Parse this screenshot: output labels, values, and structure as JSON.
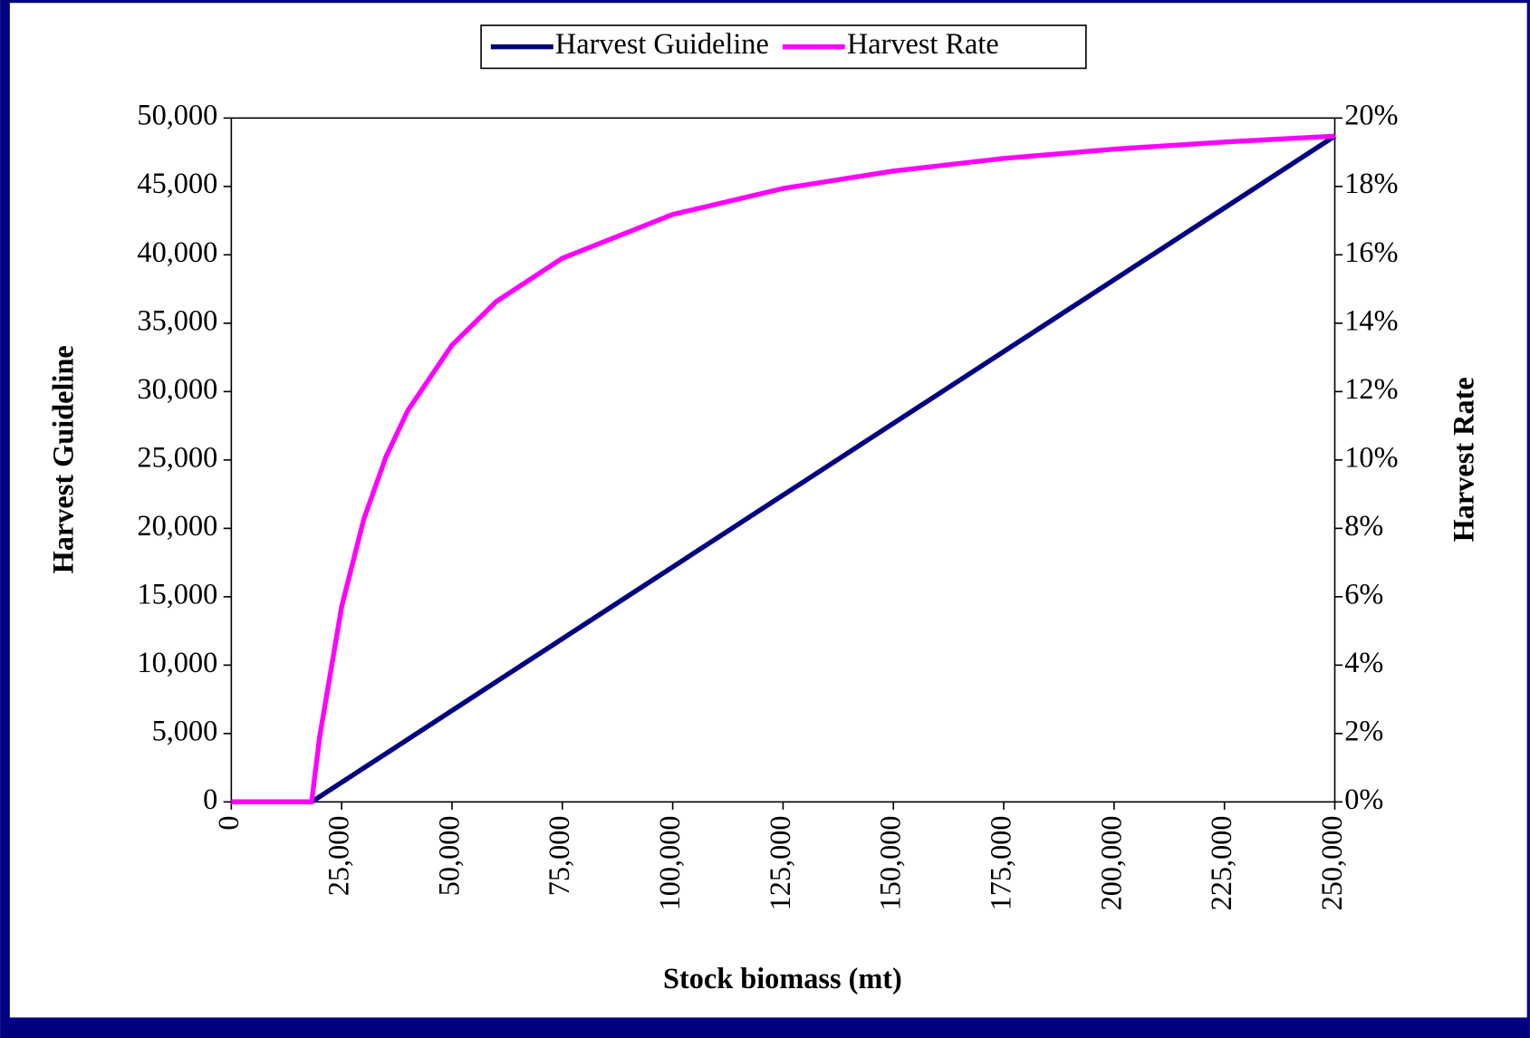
{
  "chart_data": {
    "type": "line",
    "x_label": "Stock biomass (mt)",
    "y_label": "Harvest Guideline",
    "y2_label": "Harvest Rate",
    "legend": "top",
    "x": [
      0,
      10000,
      18200,
      20000,
      25000,
      30000,
      35000,
      40000,
      50000,
      60000,
      75000,
      100000,
      125000,
      150000,
      175000,
      200000,
      225000,
      250000
    ],
    "series": [
      {
        "name": "Harvest Guideline",
        "color": "#000080",
        "axis": "y",
        "values": [
          0,
          0,
          0,
          378,
          1428,
          2478,
          3528,
          4578,
          6678,
          8778,
          11928,
          17178,
          22428,
          27678,
          32928,
          38178,
          43428,
          48678
        ]
      },
      {
        "name": "Harvest Rate",
        "color": "#ff00ff",
        "axis": "y2",
        "values": [
          0,
          0,
          0,
          1.89,
          5.71,
          8.26,
          10.08,
          11.45,
          13.36,
          14.63,
          15.9,
          17.18,
          17.94,
          18.45,
          18.82,
          19.09,
          19.3,
          19.47
        ]
      }
    ],
    "xlim": [
      0,
      250000
    ],
    "xticks": [
      0,
      {
        "value": 25000,
        "label": "25,000"
      },
      {
        "value": 50000,
        "label": "50,000"
      },
      {
        "value": 75000,
        "label": "75,000"
      },
      {
        "value": 100000,
        "label": "100,000"
      },
      {
        "value": 125000,
        "label": "125,000"
      },
      {
        "value": 150000,
        "label": "150,000"
      },
      {
        "value": 175000,
        "label": "175,000"
      },
      {
        "value": 200000,
        "label": "200,000"
      },
      {
        "value": 225000,
        "label": "225,000"
      },
      {
        "value": 250000,
        "label": "250,000"
      }
    ],
    "ylim": [
      0,
      50000
    ],
    "yticks": [
      0,
      {
        "value": 5000,
        "label": "5,000"
      },
      {
        "value": 10000,
        "label": "10,000"
      },
      {
        "value": 15000,
        "label": "15,000"
      },
      {
        "value": 20000,
        "label": "20,000"
      },
      {
        "value": 25000,
        "label": "25,000"
      },
      {
        "value": 30000,
        "label": "30,000"
      },
      {
        "value": 35000,
        "label": "35,000"
      },
      {
        "value": 40000,
        "label": "40,000"
      },
      {
        "value": 45000,
        "label": "45,000"
      },
      {
        "value": 50000,
        "label": "50,000"
      }
    ],
    "y2lim": [
      0,
      20
    ],
    "y2ticks": [
      {
        "value": 0,
        "label": "0%"
      },
      {
        "value": 2,
        "label": "2%"
      },
      {
        "value": 4,
        "label": "4%"
      },
      {
        "value": 6,
        "label": "6%"
      },
      {
        "value": 8,
        "label": "8%"
      },
      {
        "value": 10,
        "label": "10%"
      },
      {
        "value": 12,
        "label": "12%"
      },
      {
        "value": 14,
        "label": "14%"
      },
      {
        "value": 16,
        "label": "16%"
      },
      {
        "value": 18,
        "label": "18%"
      },
      {
        "value": 20,
        "label": "20%"
      }
    ]
  }
}
